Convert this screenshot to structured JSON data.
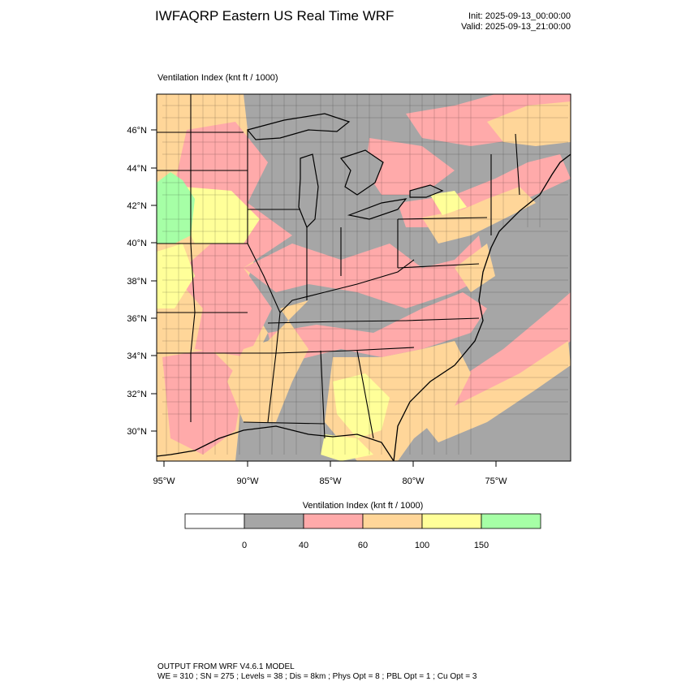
{
  "header": {
    "title": "IWFAQRP Eastern US Real Time WRF",
    "init": "Init: 2025-09-13_00:00:00",
    "valid": "Valid: 2025-09-13_21:00:00"
  },
  "field_label": "Ventilation Index   (knt ft / 1000)",
  "map": {
    "lat_labels": [
      "46°N",
      "44°N",
      "42°N",
      "40°N",
      "38°N",
      "36°N",
      "34°N",
      "32°N",
      "30°N"
    ],
    "lon_labels": [
      "95°W",
      "90°W",
      "85°W",
      "80°W",
      "75°W"
    ]
  },
  "colorbar": {
    "title": "Ventilation Index   (knt ft / 1000)",
    "levels": [
      "0",
      "40",
      "60",
      "100",
      "150"
    ],
    "colors": [
      "#ffffff",
      "#a6a6a6",
      "#ffaaaa",
      "#ffd699",
      "#ffff99",
      "#a6ffa6"
    ]
  },
  "footer": {
    "line1": "OUTPUT FROM WRF V4.6.1 MODEL",
    "line2": "WE = 310 ; SN = 275 ; Levels = 38 ; Dis = 8km ; Phys Opt = 8 ; PBL Opt = 1 ; Cu Opt = 3"
  }
}
